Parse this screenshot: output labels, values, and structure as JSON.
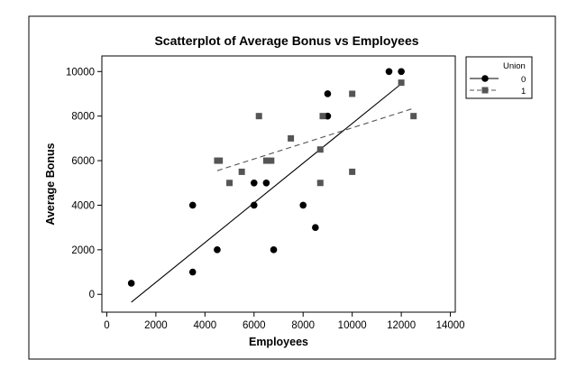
{
  "chart_data": {
    "type": "scatter",
    "title": "Scatterplot of Average Bonus vs Employees",
    "xlabel": "Employees",
    "ylabel": "Average Bonus",
    "xlim": [
      -200,
      14200
    ],
    "ylim": [
      -800,
      10700
    ],
    "xticks": [
      0,
      2000,
      4000,
      6000,
      8000,
      10000,
      12000,
      14000
    ],
    "yticks": [
      0,
      2000,
      4000,
      6000,
      8000,
      10000
    ],
    "xtick_labels": [
      "0",
      "2000",
      "4000",
      "6000",
      "8000",
      "10000",
      "12000",
      "14000"
    ],
    "ytick_labels": [
      "0",
      "2000",
      "4000",
      "6000",
      "8000",
      "10000"
    ],
    "grid": false,
    "legend": {
      "title": "Union",
      "position": "right",
      "entries": [
        "0",
        "1"
      ]
    },
    "series": [
      {
        "name": "0",
        "marker": "circle",
        "line_style": "solid",
        "color": "#000000",
        "points": [
          [
            1000,
            500
          ],
          [
            3500,
            1000
          ],
          [
            3500,
            4000
          ],
          [
            4500,
            2000
          ],
          [
            6000,
            4000
          ],
          [
            6000,
            5000
          ],
          [
            6500,
            5000
          ],
          [
            6800,
            2000
          ],
          [
            8000,
            4000
          ],
          [
            8500,
            3000
          ],
          [
            9000,
            8000
          ],
          [
            9000,
            9000
          ],
          [
            11500,
            10000
          ],
          [
            12000,
            10000
          ]
        ],
        "fit_line": [
          [
            1000,
            -350
          ],
          [
            12000,
            9450
          ]
        ]
      },
      {
        "name": "1",
        "marker": "square",
        "line_style": "dashed",
        "color": "#555555",
        "points": [
          [
            4500,
            6000
          ],
          [
            4600,
            6000
          ],
          [
            5000,
            5000
          ],
          [
            5500,
            5500
          ],
          [
            6200,
            8000
          ],
          [
            6500,
            6000
          ],
          [
            6700,
            6000
          ],
          [
            7500,
            7000
          ],
          [
            8700,
            5000
          ],
          [
            8700,
            6500
          ],
          [
            8800,
            8000
          ],
          [
            10000,
            9000
          ],
          [
            10000,
            5500
          ],
          [
            12000,
            9500
          ],
          [
            12500,
            8000
          ]
        ],
        "fit_line": [
          [
            4500,
            5550
          ],
          [
            12500,
            8350
          ]
        ]
      }
    ]
  }
}
